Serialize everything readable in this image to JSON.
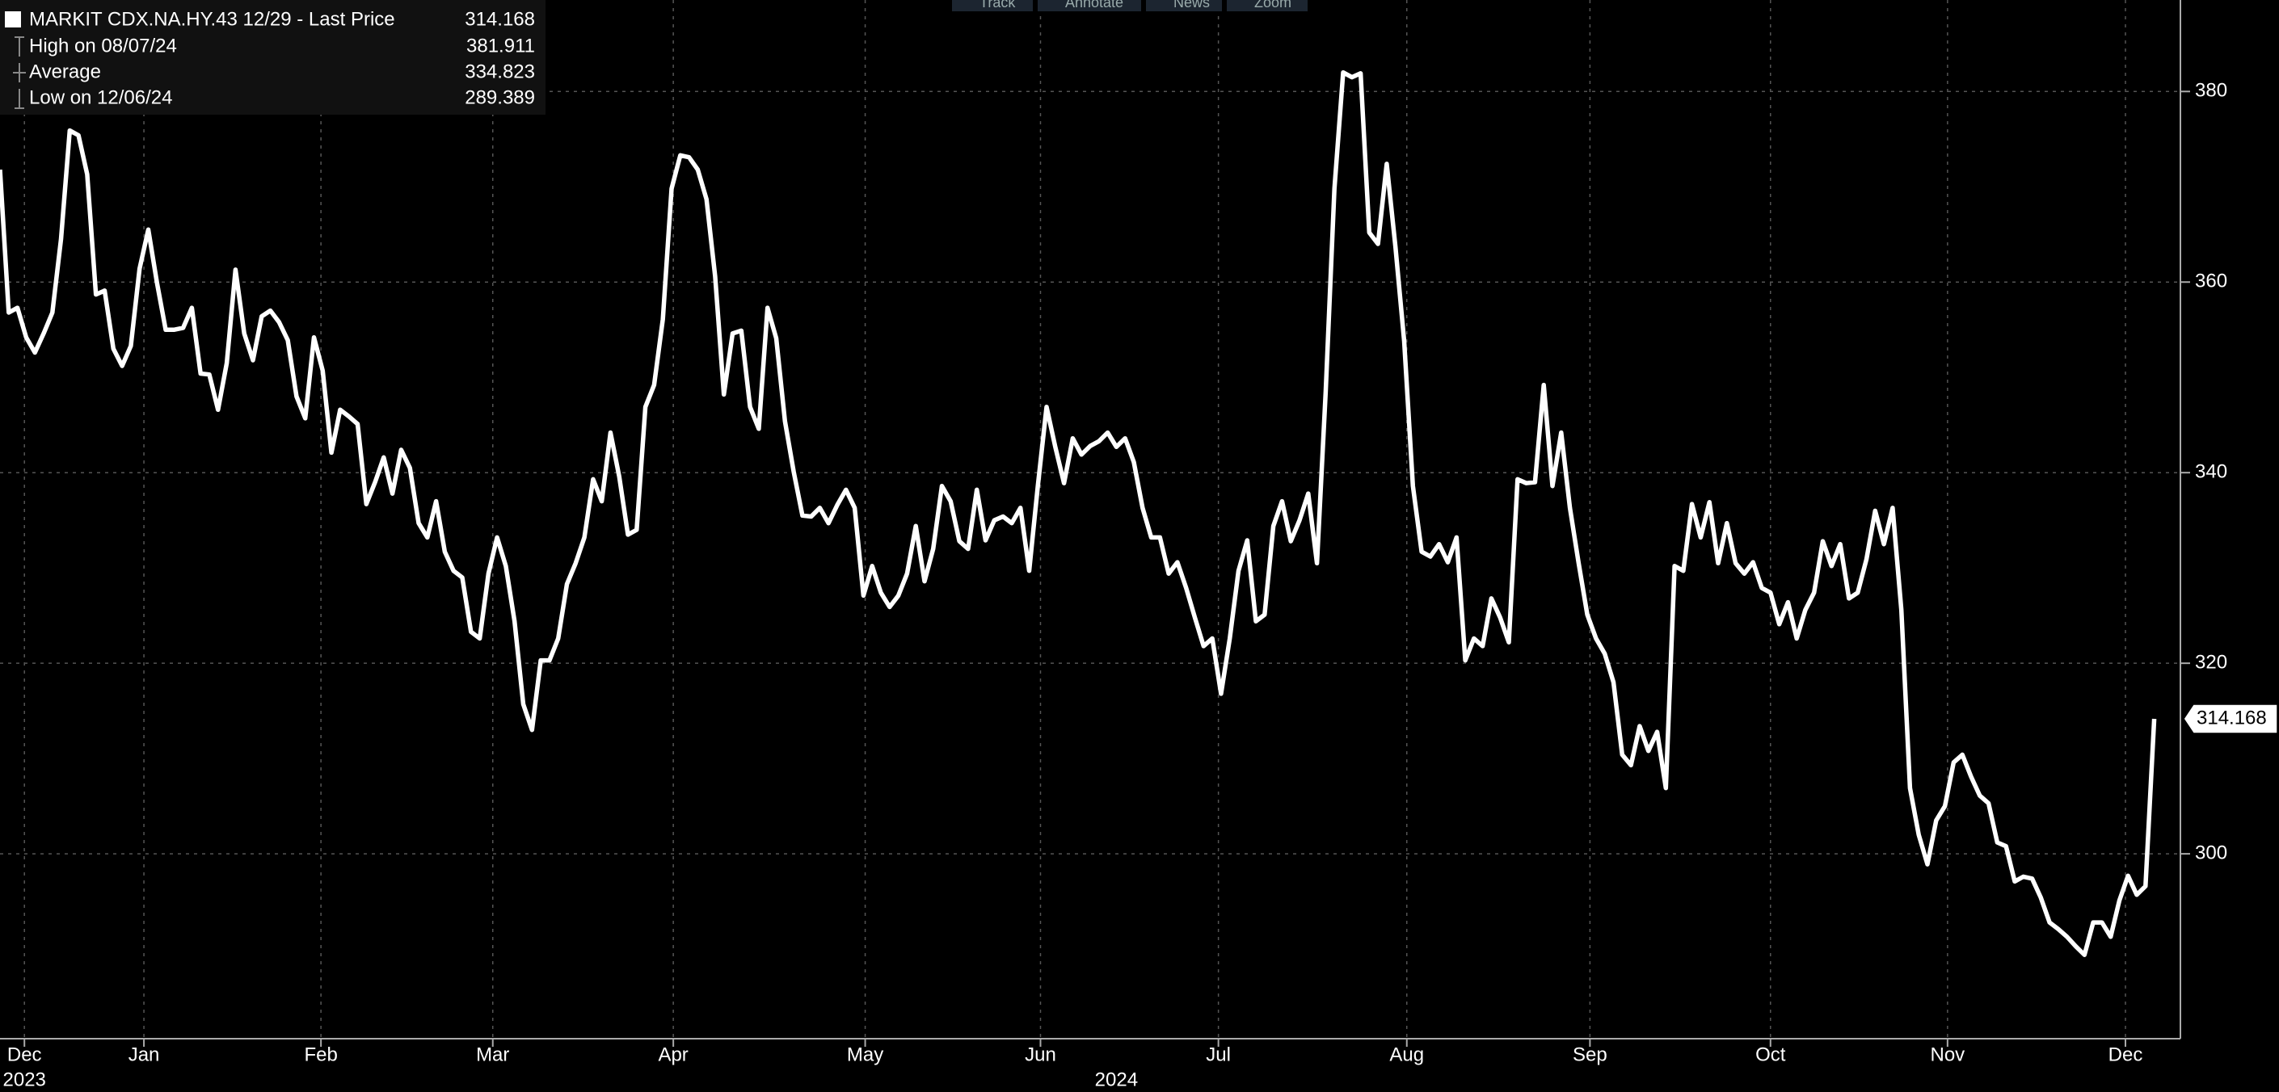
{
  "chart_data": {
    "type": "line",
    "series": [
      {
        "name": "MARKIT CDX.NA.HY.43 12/29 - Last Price",
        "color": "#ffffff",
        "values": [
          371.8,
          356.8,
          357.3,
          354.2,
          352.6,
          354.6,
          356.8,
          364.5,
          375.9,
          375.4,
          371.3,
          358.7,
          359.1,
          353.0,
          351.2,
          353.3,
          361.4,
          365.5,
          359.9,
          355.0,
          355.0,
          355.2,
          357.3,
          350.4,
          350.3,
          346.6,
          351.5,
          361.3,
          354.6,
          351.8,
          356.4,
          357.0,
          355.8,
          353.9,
          348.0,
          345.7,
          354.2,
          350.7,
          342.1,
          346.6,
          345.9,
          345.1,
          336.7,
          339.0,
          341.6,
          337.8,
          342.4,
          340.5,
          334.7,
          333.2,
          337.0,
          331.7,
          329.7,
          329.0,
          323.3,
          322.6,
          329.4,
          333.2,
          330.2,
          324.4,
          315.7,
          313.0,
          320.3,
          320.3,
          322.6,
          328.3,
          330.5,
          333.2,
          339.3,
          337.0,
          344.2,
          339.6,
          333.5,
          334.0,
          346.9,
          349.2,
          356.1,
          369.8,
          373.3,
          373.1,
          371.8,
          368.7,
          360.6,
          348.2,
          354.6,
          354.9,
          346.9,
          344.6,
          357.3,
          354.1,
          345.4,
          340.1,
          335.5,
          335.4,
          336.3,
          334.7,
          336.6,
          338.2,
          336.3,
          327.1,
          330.2,
          327.4,
          325.9,
          327.1,
          329.4,
          334.4,
          328.6,
          332.0,
          338.6,
          337.0,
          332.8,
          332.0,
          338.2,
          332.9,
          335.0,
          335.4,
          334.7,
          336.3,
          329.7,
          338.6,
          346.9,
          342.7,
          338.9,
          343.6,
          341.9,
          342.8,
          343.3,
          344.2,
          342.7,
          343.6,
          341.1,
          336.3,
          333.2,
          333.2,
          329.4,
          330.6,
          327.9,
          324.8,
          321.8,
          322.6,
          316.8,
          322.6,
          329.7,
          332.9,
          324.4,
          325.1,
          334.4,
          337.0,
          332.8,
          335.0,
          337.8,
          330.5,
          348.5,
          369.8,
          382.0,
          381.5,
          381.9,
          365.2,
          364.0,
          372.4,
          363.7,
          353.8,
          338.6,
          331.7,
          331.2,
          332.5,
          330.6,
          333.2,
          320.3,
          322.6,
          321.8,
          326.8,
          324.8,
          322.2,
          339.3,
          338.9,
          339.0,
          349.2,
          338.6,
          344.2,
          336.3,
          330.5,
          325.1,
          322.6,
          321.0,
          318.0,
          310.4,
          309.3,
          313.4,
          310.8,
          312.8,
          306.9,
          330.2,
          329.7,
          336.7,
          333.2,
          336.9,
          330.5,
          334.7,
          330.5,
          329.4,
          330.6,
          327.9,
          327.4,
          324.1,
          326.4,
          322.6,
          325.6,
          327.4,
          332.8,
          330.2,
          332.5,
          326.8,
          327.4,
          330.9,
          336.0,
          332.5,
          336.3,
          325.6,
          306.9,
          302.0,
          298.9,
          303.5,
          305.0,
          309.6,
          310.4,
          308.1,
          306.1,
          305.3,
          301.2,
          300.8,
          297.1,
          297.6,
          297.4,
          295.4,
          292.8,
          292.1,
          291.3,
          290.3,
          289.4,
          292.8,
          292.8,
          291.3,
          295.1,
          297.7,
          295.7,
          296.6,
          314.168
        ]
      }
    ],
    "xlim": [
      0,
      250
    ],
    "xticks": [
      {
        "value": 2.8,
        "label": "Dec"
      },
      {
        "value": 16.5,
        "label": "Jan"
      },
      {
        "value": 36.8,
        "label": "Feb"
      },
      {
        "value": 56.5,
        "label": "Mar"
      },
      {
        "value": 77.2,
        "label": "Apr"
      },
      {
        "value": 99.2,
        "label": "May"
      },
      {
        "value": 119.3,
        "label": "Jun"
      },
      {
        "value": 139.7,
        "label": "Jul"
      },
      {
        "value": 161.3,
        "label": "Aug"
      },
      {
        "value": 182.3,
        "label": "Sep"
      },
      {
        "value": 203,
        "label": "Oct"
      },
      {
        "value": 223.3,
        "label": "Nov"
      },
      {
        "value": 243.7,
        "label": "Dec"
      }
    ],
    "year_labels": [
      {
        "value": 2.8,
        "label": "2023"
      },
      {
        "value": 128,
        "label": "2024"
      }
    ],
    "ylim": [
      280.6,
      389.6
    ],
    "yticks": [
      300,
      320,
      340,
      360,
      380
    ],
    "grid": true,
    "stats": [
      {
        "label": "High on 08/07/24",
        "value": 381.911
      },
      {
        "label": "Average",
        "value": 334.823
      },
      {
        "label": "Low on 12/06/24",
        "value": 289.389
      }
    ]
  },
  "toolbar": [
    "Track",
    "Annotate",
    "News",
    "Zoom"
  ]
}
